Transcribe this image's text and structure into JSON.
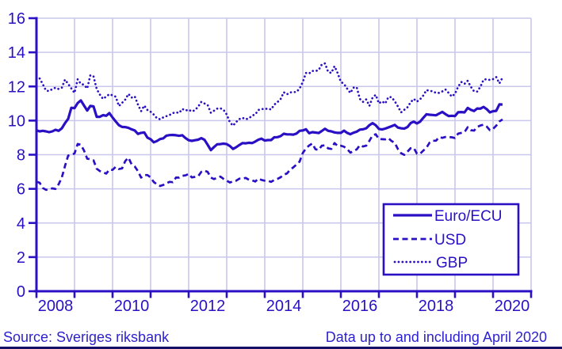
{
  "chart_data": {
    "type": "line",
    "title": "",
    "x_start": "2008-01",
    "x_end": "2020-04",
    "x_tick_labels": [
      "2008",
      "2010",
      "2012",
      "2014",
      "2016",
      "2018",
      "2020"
    ],
    "y_ticks": [
      0,
      2,
      4,
      6,
      8,
      10,
      12,
      14,
      16
    ],
    "ylim": [
      0,
      16
    ],
    "grid": true,
    "legend_position": "bottom-right",
    "series": [
      {
        "name": "Euro/ECU",
        "line_style": "solid",
        "values": [
          9.43,
          9.37,
          9.4,
          9.37,
          9.32,
          9.37,
          9.46,
          9.4,
          9.55,
          9.85,
          10.1,
          10.75,
          10.73,
          11.03,
          11.18,
          10.88,
          10.59,
          10.86,
          10.83,
          10.22,
          10.22,
          10.32,
          10.28,
          10.44,
          10.18,
          9.95,
          9.73,
          9.63,
          9.62,
          9.57,
          9.49,
          9.42,
          9.22,
          9.28,
          9.31,
          9.0,
          8.91,
          8.73,
          8.8,
          8.92,
          8.96,
          9.12,
          9.15,
          9.16,
          9.14,
          9.11,
          9.14,
          8.98,
          8.85,
          8.81,
          8.85,
          8.88,
          8.97,
          8.87,
          8.58,
          8.27,
          8.45,
          8.61,
          8.62,
          8.65,
          8.62,
          8.51,
          8.34,
          8.44,
          8.57,
          8.68,
          8.67,
          8.7,
          8.68,
          8.77,
          8.88,
          8.94,
          8.83,
          8.86,
          8.86,
          9.02,
          9.03,
          9.09,
          9.23,
          9.19,
          9.19,
          9.18,
          9.24,
          9.4,
          9.42,
          9.49,
          9.26,
          9.32,
          9.3,
          9.27,
          9.39,
          9.52,
          9.4,
          9.37,
          9.31,
          9.28,
          9.28,
          9.41,
          9.28,
          9.2,
          9.29,
          9.35,
          9.47,
          9.49,
          9.55,
          9.73,
          9.85,
          9.73,
          9.51,
          9.48,
          9.53,
          9.6,
          9.67,
          9.75,
          9.59,
          9.55,
          9.53,
          9.62,
          9.85,
          9.94,
          9.83,
          9.94,
          10.16,
          10.37,
          10.34,
          10.33,
          10.31,
          10.41,
          10.51,
          10.38,
          10.27,
          10.28,
          10.27,
          10.49,
          10.5,
          10.48,
          10.74,
          10.63,
          10.56,
          10.71,
          10.7,
          10.8,
          10.67,
          10.48,
          10.55,
          10.57,
          10.95,
          10.94
        ]
      },
      {
        "name": "USD",
        "line_style": "dashed",
        "values": [
          6.42,
          6.36,
          6.05,
          5.94,
          5.98,
          6.03,
          5.99,
          6.27,
          6.67,
          7.34,
          7.95,
          8.0,
          8.07,
          8.63,
          8.59,
          8.24,
          7.77,
          7.74,
          7.67,
          7.18,
          7.04,
          6.97,
          6.89,
          7.13,
          7.11,
          7.29,
          7.16,
          7.2,
          7.63,
          7.83,
          7.44,
          7.31,
          7.04,
          6.66,
          6.81,
          6.81,
          6.67,
          6.4,
          6.26,
          6.17,
          6.23,
          6.33,
          6.41,
          6.39,
          6.66,
          6.66,
          6.76,
          6.79,
          6.88,
          6.67,
          6.7,
          6.74,
          7.0,
          7.07,
          6.99,
          6.66,
          6.57,
          6.65,
          6.72,
          6.58,
          6.48,
          6.37,
          6.44,
          6.48,
          6.6,
          6.6,
          6.64,
          6.53,
          6.5,
          6.43,
          6.6,
          6.52,
          6.48,
          6.47,
          6.41,
          6.52,
          6.58,
          6.68,
          6.83,
          6.9,
          7.12,
          7.26,
          7.42,
          7.6,
          8.1,
          8.37,
          8.54,
          8.66,
          8.32,
          8.28,
          8.53,
          8.55,
          8.37,
          8.34,
          8.68,
          8.51,
          8.53,
          8.47,
          8.33,
          8.12,
          8.22,
          8.31,
          8.56,
          8.48,
          8.53,
          8.81,
          9.13,
          9.2,
          8.92,
          8.91,
          8.9,
          8.97,
          8.8,
          8.7,
          8.33,
          8.09,
          7.99,
          8.17,
          8.38,
          8.4,
          8.06,
          8.06,
          8.24,
          8.41,
          8.71,
          8.82,
          8.82,
          9.03,
          8.99,
          9.04,
          9.04,
          9.02,
          8.98,
          9.24,
          9.28,
          9.32,
          9.61,
          9.44,
          9.41,
          9.63,
          9.71,
          9.76,
          9.65,
          9.44,
          9.51,
          9.7,
          9.95,
          10.07
        ]
      },
      {
        "name": "GBP",
        "line_style": "dotted",
        "values": [
          12.6,
          12.47,
          12.13,
          11.76,
          11.73,
          11.85,
          11.93,
          11.85,
          11.93,
          12.4,
          12.15,
          11.88,
          11.62,
          12.42,
          12.15,
          12.1,
          11.88,
          12.66,
          12.58,
          11.85,
          11.52,
          11.27,
          11.41,
          11.55,
          11.48,
          11.4,
          10.85,
          11.04,
          11.23,
          11.56,
          11.35,
          11.42,
          10.94,
          10.55,
          10.88,
          10.62,
          10.52,
          10.35,
          10.14,
          10.08,
          10.19,
          10.26,
          10.33,
          10.44,
          10.48,
          10.45,
          10.68,
          10.59,
          10.64,
          10.53,
          10.61,
          10.82,
          11.1,
          11.0,
          10.91,
          10.46,
          10.58,
          10.7,
          10.72,
          10.63,
          10.36,
          9.9,
          9.7,
          9.92,
          10.09,
          10.16,
          10.08,
          10.13,
          10.29,
          10.36,
          10.62,
          10.68,
          10.67,
          10.71,
          10.65,
          10.93,
          11.08,
          11.26,
          11.66,
          11.54,
          11.65,
          11.67,
          11.68,
          11.88,
          12.26,
          12.79,
          12.76,
          12.91,
          12.9,
          12.96,
          13.29,
          13.35,
          12.85,
          12.79,
          13.19,
          12.78,
          12.27,
          12.15,
          11.87,
          11.62,
          11.93,
          11.95,
          11.27,
          11.1,
          11.24,
          10.86,
          11.35,
          11.51,
          11.01,
          11.13,
          11.0,
          11.38,
          11.37,
          11.13,
          10.83,
          10.48,
          10.63,
          10.78,
          11.07,
          11.27,
          11.11,
          11.25,
          11.47,
          11.79,
          11.74,
          11.72,
          11.62,
          11.62,
          11.71,
          11.82,
          11.62,
          11.41,
          11.57,
          11.99,
          12.26,
          12.15,
          12.33,
          11.98,
          11.72,
          11.7,
          11.98,
          12.39,
          12.43,
          12.38,
          12.43,
          12.55,
          12.18,
          12.52
        ]
      }
    ]
  },
  "footer": {
    "source": "Source: Sveriges riksbank",
    "note": "Data up to and including April 2020"
  },
  "colors": {
    "line": "#2a10c4",
    "grid": "#c9c7ec",
    "footer_text": "#2c1fd0",
    "bottom_rule": "#141068",
    "background": "#ffffff"
  }
}
